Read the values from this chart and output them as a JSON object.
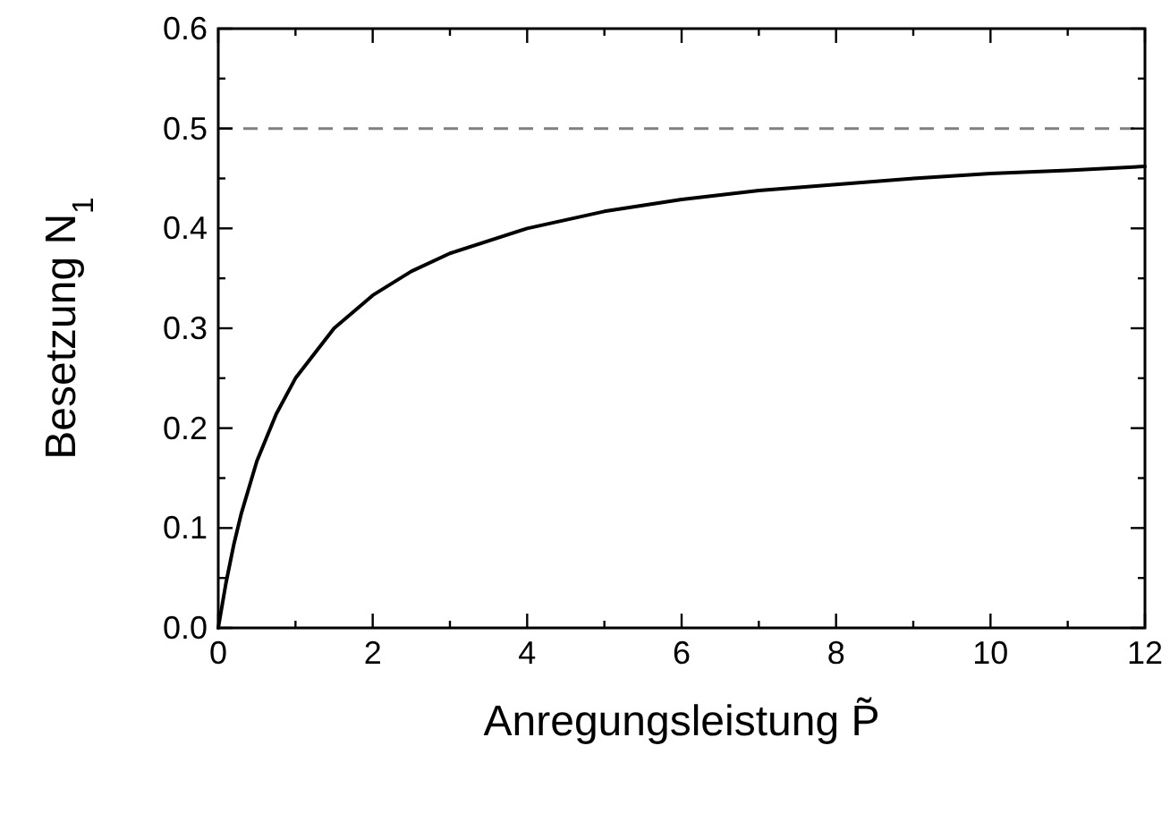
{
  "chart_data": {
    "type": "line",
    "xlabel": "Anregungsleistung P̃",
    "ylabel": "Besetzung N$_{1}$",
    "x": [
      0,
      0.1,
      0.2,
      0.3,
      0.5,
      0.75,
      1,
      1.5,
      2,
      2.5,
      3,
      4,
      5,
      6,
      7,
      8,
      9,
      10,
      11,
      12
    ],
    "series": [
      {
        "color": "#000000",
        "values": [
          0,
          0.045,
          0.083,
          0.115,
          0.167,
          0.214,
          0.25,
          0.3,
          0.333,
          0.357,
          0.375,
          0.4,
          0.417,
          0.429,
          0.438,
          0.444,
          0.45,
          0.455,
          0.458,
          0.462
        ]
      }
    ],
    "xlim": [
      0,
      12
    ],
    "xticks": [
      0,
      {
        "value": 1,
        "label": null
      },
      2,
      {
        "value": 3,
        "label": null
      },
      4,
      {
        "value": 5,
        "label": null
      },
      6,
      {
        "value": 7,
        "label": null
      },
      8,
      {
        "value": 9,
        "label": null
      },
      10,
      {
        "value": 11,
        "label": null
      },
      12
    ],
    "ylim": [
      0,
      0.6
    ],
    "yticks": [
      {
        "value": 0,
        "label": "0.0"
      },
      {
        "value": 0.05,
        "label": null
      },
      0.1,
      {
        "value": 0.15,
        "label": null
      },
      0.2,
      {
        "value": 0.25,
        "label": null
      },
      0.3,
      {
        "value": 0.35,
        "label": null
      },
      0.4,
      {
        "value": 0.45,
        "label": null
      },
      0.5,
      {
        "value": 0.55,
        "label": null
      },
      0.6
    ],
    "ref_lines": [
      {
        "axis": "y",
        "value": 0.5,
        "color": "#808080",
        "line_style": "dashed"
      }
    ],
    "grid": false,
    "marker": "none",
    "line_style": "solid"
  }
}
